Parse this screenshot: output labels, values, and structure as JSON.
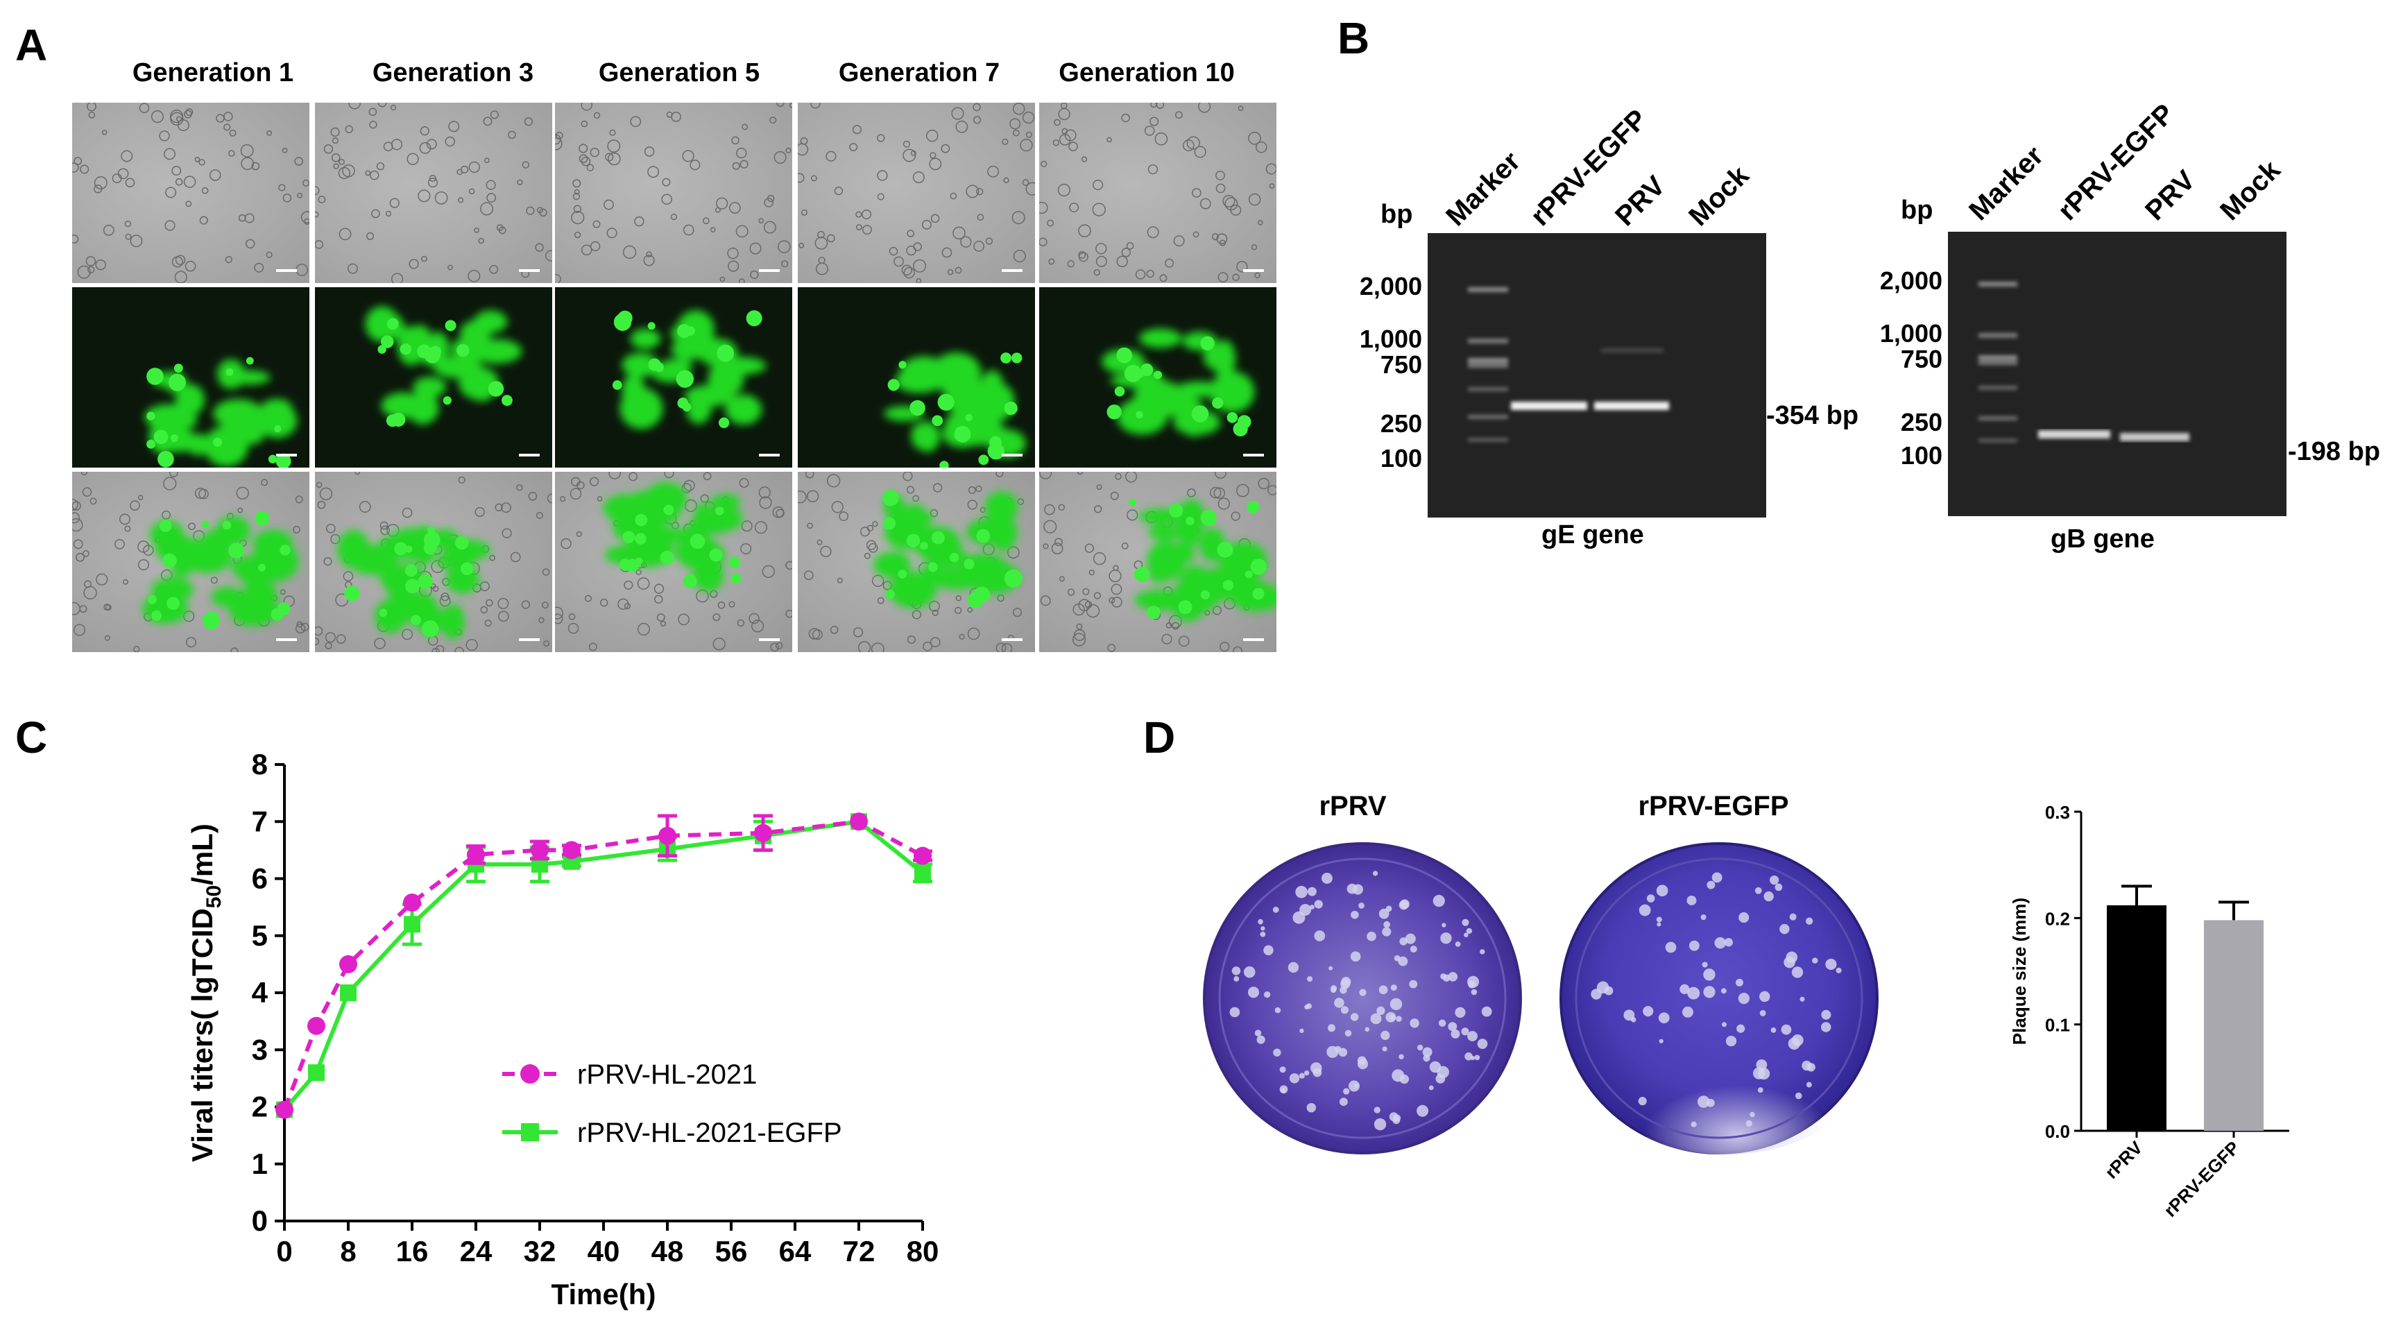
{
  "panel_a": {
    "letter": "A",
    "generations": [
      "Generation 1",
      "Generation 3",
      "Generation 5",
      "Generation 7",
      "Generation 10"
    ]
  },
  "panel_b": {
    "letter": "B",
    "gels": [
      {
        "bp_label": "bp",
        "lanes": [
          "Marker",
          "rPRV-EGFP",
          "PRV",
          "Mock"
        ],
        "ticks": [
          "2,000",
          "1,000",
          "750",
          "250",
          "100"
        ],
        "band_label": "-354 bp",
        "gene": "gE gene"
      },
      {
        "bp_label": "bp",
        "lanes": [
          "Marker",
          "rPRV-EGFP",
          "PRV",
          "Mock"
        ],
        "ticks": [
          "2,000",
          "1,000",
          "750",
          "250",
          "100"
        ],
        "band_label": "-198 bp",
        "gene": "gB gene"
      }
    ]
  },
  "panel_c": {
    "letter": "C",
    "chart_data": {
      "type": "line",
      "xlabel": "Time(h)",
      "ylabel_prefix": "Viral titers( lgTCID",
      "ylabel_sub": "50",
      "ylabel_suffix": "/mL)",
      "xlim": [
        0,
        80
      ],
      "ylim": [
        0,
        8
      ],
      "xticks": [
        0,
        8,
        16,
        24,
        32,
        40,
        48,
        56,
        64,
        72,
        80
      ],
      "yticks": [
        0,
        1,
        2,
        3,
        4,
        5,
        6,
        7,
        8
      ],
      "legend": "center-right",
      "series": [
        {
          "name": "rPRV-HL-2021",
          "color": "#e020c8",
          "marker": "circle",
          "linestyle": "dashed",
          "x": [
            0,
            4,
            8,
            16,
            24,
            32,
            36,
            48,
            60,
            72,
            80
          ],
          "y": [
            1.95,
            3.42,
            4.5,
            5.58,
            6.42,
            6.5,
            6.5,
            6.75,
            6.8,
            7.0,
            6.4
          ],
          "err": [
            0.05,
            0.05,
            0.05,
            0.05,
            0.15,
            0.15,
            0.08,
            0.35,
            0.3,
            0.05,
            0.08
          ]
        },
        {
          "name": "rPRV-HL-2021-EGFP",
          "color": "#33e633",
          "marker": "square",
          "linestyle": "solid",
          "x": [
            0,
            4,
            8,
            16,
            24,
            32,
            36,
            48,
            60,
            72,
            80
          ],
          "y": [
            1.95,
            2.6,
            4.0,
            5.2,
            6.25,
            6.25,
            6.3,
            6.52,
            6.75,
            7.0,
            6.1
          ],
          "err": [
            0.05,
            0.05,
            0.05,
            0.35,
            0.3,
            0.3,
            0.08,
            0.2,
            0.25,
            0.05,
            0.15
          ]
        }
      ]
    }
  },
  "panel_d": {
    "letter": "D",
    "plates": [
      "rPRV",
      "rPRV-EGFP"
    ],
    "chart_data": {
      "type": "bar",
      "categories": [
        "rPRV",
        "rPRV-EGFP"
      ],
      "values": [
        0.212,
        0.198
      ],
      "errors": [
        0.018,
        0.017
      ],
      "colors": [
        "#000000",
        "#a8a8ae"
      ],
      "ylabel": "Plaque size (mm)",
      "ylim": [
        0,
        0.3
      ],
      "yticks": [
        "0.0",
        "0.1",
        "0.2",
        "0.3"
      ]
    }
  }
}
